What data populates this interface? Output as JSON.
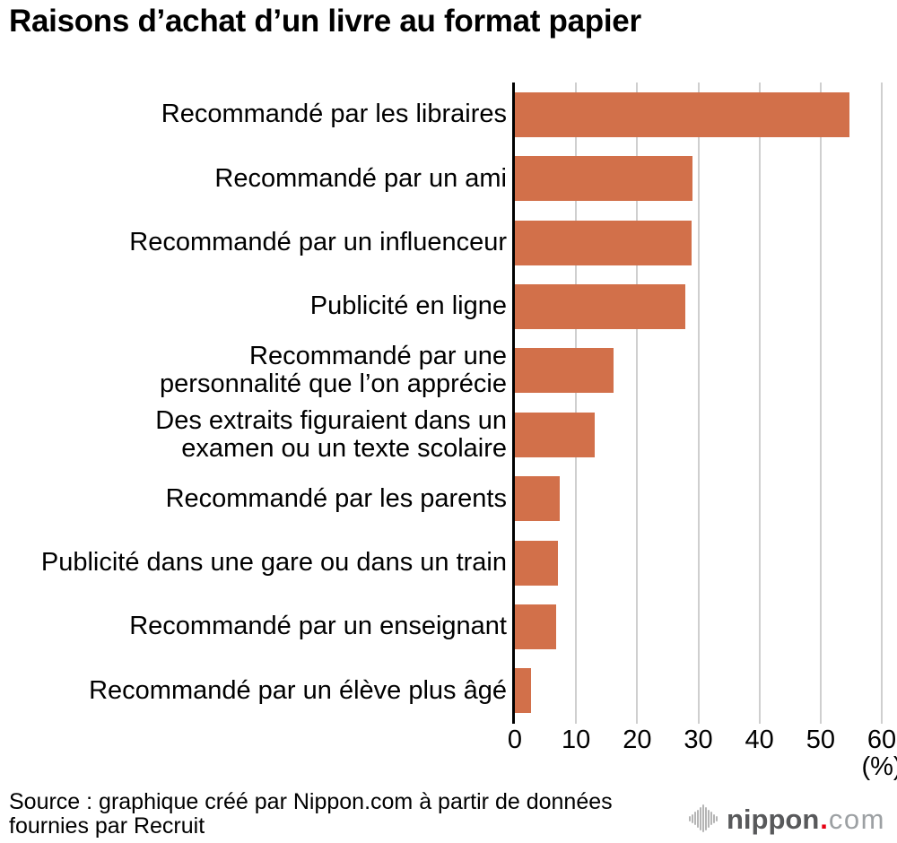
{
  "title": "Raisons d’achat d’un livre au format papier",
  "chart_data": {
    "type": "bar",
    "orientation": "horizontal",
    "categories": [
      "Recommandé par les libraires",
      "Recommandé par un ami",
      "Recommandé par un influenceur",
      "Publicité en ligne",
      "Recommandé par une\npersonnalité que l’on apprécie",
      "Des extraits figuraient dans un\nexamen ou un texte scolaire",
      "Recommandé par les parents",
      "Publicité dans une gare ou dans un train",
      "Recommandé par un enseignant",
      "Recommandé par un élève plus âgé"
    ],
    "values": [
      54.7,
      29.1,
      28.9,
      27.9,
      16.2,
      13.1,
      7.4,
      7.1,
      6.7,
      2.7
    ],
    "xlim": [
      0,
      60
    ],
    "xticks": [
      0,
      10,
      20,
      30,
      40,
      50,
      60
    ],
    "unit_label": "(%)",
    "bar_color": "#d2704a",
    "gridline_color": "#cfcfcf",
    "axis_color": "#000000",
    "grid": true,
    "legend": "none"
  },
  "footer": {
    "source_line1": "Source : graphique créé par Nippon.com à partir de données",
    "source_line2": "fournies par Recruit",
    "logo": {
      "name": "nippon",
      "dot": ".",
      "tld": "com"
    }
  }
}
